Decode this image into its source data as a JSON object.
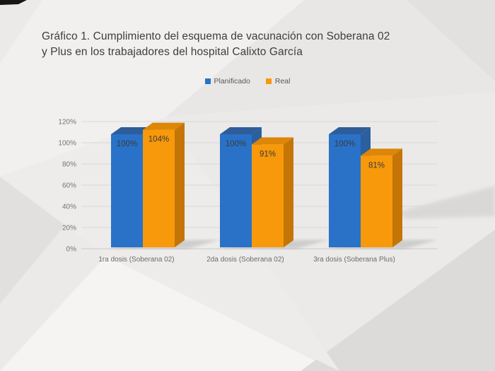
{
  "title": "Gráfico 1. Cumplimiento del esquema de vacunación con Soberana 02\ny Plus en los trabajadores del hospital Calixto García",
  "chart_data": {
    "type": "bar",
    "style": "3d-clustered-column",
    "title": "Gráfico 1. Cumplimiento del esquema de vacunación con Soberana 02 y Plus en los trabajadores del hospital Calixto García",
    "categories": [
      "1ra dosis (Soberana 02)",
      "2da dosis (Soberana 02)",
      "3ra dosis (Soberana Plus)"
    ],
    "series": [
      {
        "name": "Planificado",
        "values": [
          100,
          100,
          100
        ],
        "color": "#2a72c8",
        "color_top": "#2e5d99",
        "color_side": "#2b5f9e"
      },
      {
        "name": "Real",
        "values": [
          104,
          91,
          81
        ],
        "color": "#f7990b",
        "color_top": "#dd8607",
        "color_side": "#c47506"
      }
    ],
    "data_labels": [
      [
        "100%",
        "100%",
        "100%"
      ],
      [
        "104%",
        "91%",
        "81%"
      ]
    ],
    "y_axis": {
      "min": 0,
      "max": 120,
      "step": 20,
      "tick_labels": [
        "0%",
        "20%",
        "40%",
        "60%",
        "80%",
        "100%",
        "120%"
      ]
    },
    "xlabel": "",
    "ylabel": "",
    "legend_position": "top-center",
    "grid": true,
    "grid_color": "#d8d7d6",
    "label_color": "#3a3a3a"
  }
}
